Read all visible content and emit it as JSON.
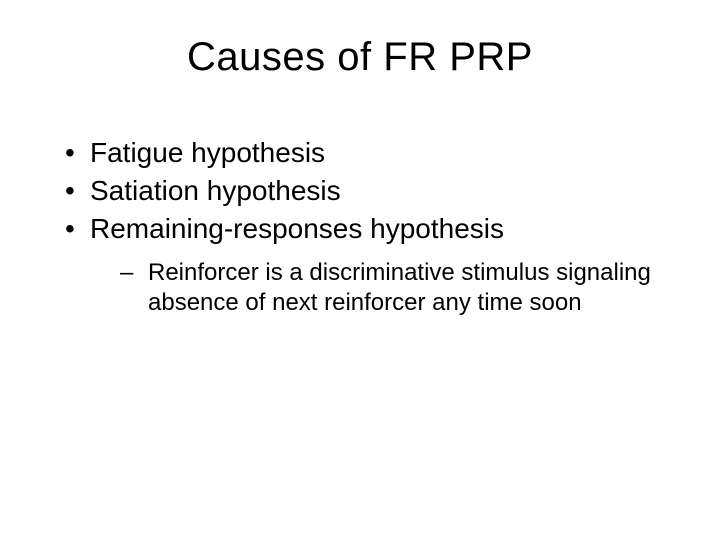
{
  "slide": {
    "title": "Causes of FR PRP",
    "bullets": [
      {
        "text": "Fatigue hypothesis"
      },
      {
        "text": "Satiation hypothesis"
      },
      {
        "text": "Remaining-responses hypothesis"
      }
    ],
    "sub_bullet": "Reinforcer is a discriminative stimulus signaling absence of next reinforcer any time soon",
    "background_color": "#ffffff",
    "text_color": "#000000",
    "title_fontsize": 40,
    "bullet_fontsize": 28,
    "sub_bullet_fontsize": 24
  }
}
